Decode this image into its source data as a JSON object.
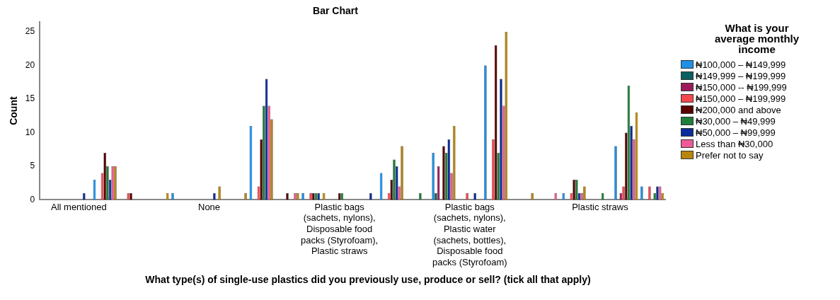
{
  "chart_data": {
    "type": "bar",
    "title": "Bar Chart",
    "xlabel": "What type(s) of single-use plastics did you previously use, produce or sell? (tick all that apply)",
    "ylabel": "Count",
    "legend_title": "What is your average monthly income",
    "legend": "right",
    "grid": false,
    "categories": [
      null,
      "All mentioned",
      null,
      null,
      null,
      null,
      "None",
      null,
      null,
      null,
      null,
      "Plastic bags (sachets, nylons), Disposable food packs (Styrofoam), Plastic straws",
      null,
      null,
      null,
      null,
      "Plastic bags (sachets, nylons), Plastic water (sachets, bottles), Disposable food packs (Styrofoam)",
      null,
      null,
      null,
      null,
      "Plastic straws",
      null,
      null
    ],
    "ylim": [
      0,
      26.5
    ],
    "yticks": [
      0,
      5,
      10,
      15,
      20,
      25
    ],
    "series": [
      {
        "name": "₦100,000 – ₦149,999",
        "color": "#1e90e6",
        "values": [
          null,
          null,
          3,
          null,
          null,
          1,
          null,
          null,
          11,
          null,
          1,
          null,
          null,
          4,
          null,
          7,
          null,
          20,
          null,
          null,
          1,
          null,
          8,
          2
        ]
      },
      {
        "name": "₦149,999 – ₦199,999",
        "color": "#0a6060",
        "values": [
          null,
          null,
          null,
          null,
          null,
          null,
          null,
          null,
          null,
          null,
          null,
          null,
          null,
          null,
          null,
          1,
          null,
          null,
          null,
          null,
          null,
          null,
          null,
          null
        ]
      },
      {
        "name": "₦150,000 -- ₦199,999",
        "color": "#9b1b5a",
        "values": [
          null,
          null,
          null,
          null,
          null,
          null,
          null,
          null,
          null,
          null,
          null,
          null,
          null,
          null,
          null,
          5,
          null,
          null,
          null,
          null,
          null,
          null,
          1,
          null
        ]
      },
      {
        "name": "₦150,000 – ₦199,999",
        "color": "#f5474e",
        "values": [
          null,
          null,
          4,
          1,
          null,
          null,
          null,
          null,
          2,
          null,
          1,
          null,
          null,
          1,
          null,
          null,
          1,
          9,
          null,
          null,
          1,
          null,
          2,
          2
        ]
      },
      {
        "name": "₦200,000 and above",
        "color": "#5a0000",
        "values": [
          null,
          null,
          7,
          1,
          null,
          null,
          null,
          null,
          9,
          1,
          1,
          1,
          null,
          3,
          null,
          8,
          null,
          23,
          null,
          null,
          3,
          null,
          10,
          null
        ]
      },
      {
        "name": "₦30,000 – ₦49,999",
        "color": "#1e7e3a",
        "values": [
          null,
          null,
          5,
          null,
          null,
          null,
          null,
          null,
          14,
          null,
          1,
          1,
          null,
          6,
          1,
          7,
          null,
          7,
          null,
          null,
          3,
          1,
          17,
          1
        ]
      },
      {
        "name": "₦50,000 – ₦99,999",
        "color": "#0a2d9a",
        "values": [
          null,
          1,
          3,
          null,
          null,
          null,
          1,
          null,
          18,
          null,
          1,
          null,
          1,
          5,
          null,
          9,
          1,
          18,
          null,
          null,
          1,
          null,
          11,
          2
        ]
      },
      {
        "name": "Less than ₦30,000",
        "color": "#ee5a96",
        "values": [
          null,
          null,
          5,
          null,
          null,
          null,
          null,
          null,
          14,
          1,
          null,
          null,
          null,
          2,
          null,
          4,
          null,
          14,
          null,
          1,
          1,
          null,
          9,
          2
        ]
      },
      {
        "name": "Prefer not to say",
        "color": "#b8860b",
        "values": [
          null,
          null,
          5,
          null,
          1,
          null,
          2,
          1,
          12,
          1,
          1,
          null,
          null,
          8,
          null,
          11,
          null,
          25,
          1,
          null,
          2,
          null,
          13,
          1
        ]
      }
    ]
  }
}
